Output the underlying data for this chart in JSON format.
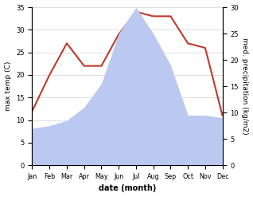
{
  "months": [
    "Jan",
    "Feb",
    "Mar",
    "Apr",
    "May",
    "Jun",
    "Jul",
    "Aug",
    "Sep",
    "Oct",
    "Nov",
    "Dec"
  ],
  "temperature": [
    12,
    20,
    27,
    22,
    22,
    29,
    34,
    33,
    33,
    27,
    26,
    11
  ],
  "precipitation_right": [
    7,
    7.5,
    8.5,
    11,
    15.5,
    25,
    30,
    25,
    19,
    9.5,
    9.5,
    9
  ],
  "temp_color": "#c0392b",
  "precip_fill_color": "#bbc8f0",
  "left_label": "max temp (C)",
  "right_label": "med. precipitation (kg/m2)",
  "xlabel": "date (month)",
  "ylim_left": [
    0,
    35
  ],
  "ylim_right": [
    0,
    30
  ],
  "yticks_left": [
    0,
    5,
    10,
    15,
    20,
    25,
    30,
    35
  ],
  "yticks_right": [
    0,
    5,
    10,
    15,
    20,
    25,
    30
  ],
  "background_color": "#ffffff",
  "grid_color": "#d0d0d0"
}
